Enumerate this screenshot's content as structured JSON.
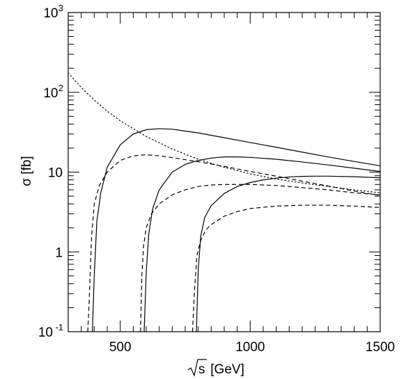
{
  "chart_data": {
    "type": "line",
    "title": "",
    "xlabel": {
      "sqrt": "s",
      "rest": " [GeV]"
    },
    "ylabel": "σ [fb]",
    "xlim": [
      300,
      1500
    ],
    "ylim": [
      0.1,
      1000
    ],
    "yscale": "log",
    "grid": false,
    "x_ticks": [
      {
        "value": 500,
        "label": "500"
      },
      {
        "value": 1000,
        "label": "1000"
      },
      {
        "value": 1500,
        "label": "1500"
      }
    ],
    "y_ticks": [
      {
        "value": 0.1,
        "base": "10",
        "exp": "-1"
      },
      {
        "value": 1,
        "base": "1",
        "exp": ""
      },
      {
        "value": 10,
        "base": "10",
        "exp": ""
      },
      {
        "value": 100,
        "base": "10",
        "exp": "2"
      },
      {
        "value": 1000,
        "base": "10",
        "exp": "3"
      }
    ],
    "series": [
      {
        "style": "solid",
        "x": [
          393,
          400,
          410,
          425,
          450,
          500,
          550,
          600,
          650,
          700,
          800,
          900,
          1000,
          1100,
          1200,
          1300,
          1400,
          1500
        ],
        "y": [
          0.1,
          0.5,
          2.4,
          5.5,
          11.5,
          22,
          30,
          34,
          35,
          34.5,
          31,
          27,
          23.5,
          20.5,
          17.8,
          15.5,
          13.6,
          12
        ]
      },
      {
        "style": "dashed",
        "x": [
          375,
          380,
          390,
          400,
          420,
          450,
          500,
          550,
          600,
          650,
          700,
          800,
          900,
          1000,
          1100,
          1200,
          1300,
          1400,
          1500
        ],
        "y": [
          0.1,
          0.22,
          1.6,
          4,
          6.8,
          10,
          14,
          16,
          16.5,
          16,
          15.2,
          13.5,
          11.8,
          10.2,
          8.9,
          7.7,
          6.7,
          5.8,
          5.1
        ]
      },
      {
        "style": "solid",
        "x": [
          592,
          600,
          610,
          625,
          650,
          700,
          750,
          800,
          850,
          900,
          950,
          1000,
          1100,
          1200,
          1300,
          1400,
          1500
        ],
        "y": [
          0.1,
          0.55,
          1.7,
          3.5,
          6,
          10,
          12.5,
          14,
          15,
          15.5,
          15.5,
          15.3,
          14.5,
          13.4,
          12.3,
          11.2,
          10.2
        ]
      },
      {
        "style": "dashed",
        "x": [
          578,
          583,
          590,
          600,
          620,
          650,
          700,
          750,
          800,
          850,
          900,
          950,
          1000,
          1100,
          1200,
          1300,
          1400,
          1500
        ],
        "y": [
          0.1,
          0.5,
          1.2,
          2,
          3,
          4,
          5.2,
          6,
          6.6,
          6.9,
          7,
          7,
          7,
          6.8,
          6.4,
          6,
          5.5,
          5.2
        ]
      },
      {
        "style": "solid",
        "x": [
          793,
          800,
          810,
          825,
          850,
          900,
          950,
          1000,
          1050,
          1100,
          1150,
          1200,
          1250,
          1300,
          1400,
          1500
        ],
        "y": [
          0.1,
          0.6,
          1.6,
          2.7,
          3.8,
          5.4,
          6.6,
          7.4,
          8,
          8.4,
          8.7,
          8.85,
          8.9,
          8.9,
          8.75,
          8.5
        ]
      },
      {
        "style": "dashed",
        "x": [
          778,
          785,
          795,
          810,
          830,
          850,
          900,
          950,
          1000,
          1100,
          1200,
          1300,
          1400,
          1500
        ],
        "y": [
          0.1,
          0.3,
          0.9,
          1.4,
          1.9,
          2.2,
          2.8,
          3.2,
          3.5,
          3.75,
          3.85,
          3.85,
          3.75,
          3.6
        ]
      },
      {
        "style": "dotted",
        "x": [
          300,
          350,
          400,
          450,
          500,
          600,
          700,
          800,
          900,
          1000,
          1100,
          1200,
          1300,
          1400,
          1500
        ],
        "y": [
          175,
          115,
          80,
          58,
          44,
          28,
          19.5,
          14.5,
          11.5,
          9.5,
          8.2,
          7.3,
          6.6,
          6,
          5.5
        ]
      }
    ]
  }
}
